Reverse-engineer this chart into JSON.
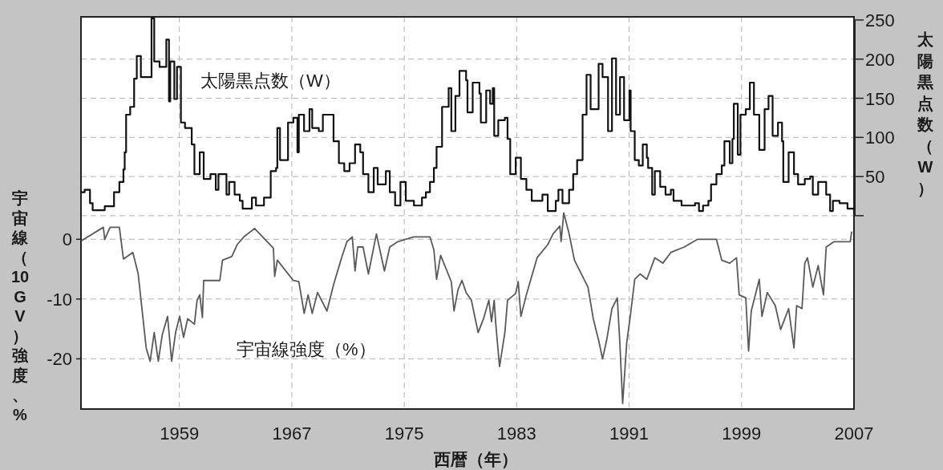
{
  "chart_data": {
    "type": "line",
    "xlabel": "西暦（年）",
    "ylabel": "宇宙線（10GV）強度、%",
    "y2label": "太陽黒点数（W）",
    "xlim": [
      1952,
      2007
    ],
    "xticks": [
      1959,
      1967,
      1975,
      1983,
      1991,
      1999,
      2007
    ],
    "ylim": [
      -28.4,
      37.2
    ],
    "yticks": [
      -20,
      -10,
      0
    ],
    "y2lim": [
      -247,
      254
    ],
    "y2ticks": [
      {
        "value": 0,
        "label": null
      },
      50,
      100,
      150,
      200,
      250
    ],
    "grid": true,
    "legend": false,
    "series": [
      {
        "name": "太陽黒点数（W）",
        "type": "step",
        "axis": "y2",
        "color": "#111111",
        "x": [
          1952.0,
          1952.26,
          1952.64,
          1952.83,
          1953.69,
          1954.35,
          1954.73,
          1955.02,
          1955.11,
          1955.21,
          1955.5,
          1955.78,
          1955.97,
          1956.26,
          1957.02,
          1957.21,
          1957.59,
          1958.07,
          1958.26,
          1958.35,
          1958.64,
          1958.83,
          1959.11,
          1959.4,
          1959.88,
          1960.07,
          1960.45,
          1960.73,
          1961.21,
          1961.59,
          1961.78,
          1962.35,
          1962.54,
          1962.93,
          1963.3,
          1963.5,
          1964.16,
          1964.45,
          1965.02,
          1965.5,
          1965.88,
          1965.97,
          1966.16,
          1966.73,
          1967.11,
          1967.4,
          1967.5,
          1967.87,
          1968.26,
          1968.45,
          1968.92,
          1969.21,
          1969.59,
          1969.97,
          1970.35,
          1970.73,
          1971.11,
          1971.5,
          1971.87,
          1972.07,
          1972.45,
          1972.83,
          1973.11,
          1973.69,
          1973.97,
          1974.35,
          1974.73,
          1975.11,
          1975.69,
          1976.26,
          1976.54,
          1976.83,
          1977.11,
          1977.3,
          1977.69,
          1978.16,
          1978.35,
          1978.64,
          1978.93,
          1979.4,
          1979.5,
          1979.87,
          1980.35,
          1980.45,
          1980.83,
          1981.11,
          1981.3,
          1981.4,
          1981.69,
          1982.16,
          1982.35,
          1982.54,
          1982.93,
          1983.3,
          1983.69,
          1984.07,
          1984.83,
          1985.21,
          1985.78,
          1985.97,
          1986.26,
          1986.73,
          1987.02,
          1987.3,
          1987.69,
          1987.97,
          1988.26,
          1988.83,
          1989.11,
          1989.5,
          1989.78,
          1990.07,
          1990.35,
          1990.64,
          1991.02,
          1991.11,
          1991.4,
          1991.69,
          1991.97,
          1992.26,
          1992.35,
          1992.64,
          1992.83,
          1993.21,
          1993.59,
          1993.97,
          1994.16,
          1994.73,
          1995.3,
          1995.69,
          1995.97,
          1996.26,
          1996.64,
          1996.83,
          1997.21,
          1997.59,
          1997.78,
          1998.16,
          1998.35,
          1998.45,
          1998.73,
          1998.92,
          1999.3,
          1999.59,
          1999.88,
          2000.26,
          2000.64,
          2000.92,
          2001.21,
          2001.59,
          2001.88,
          2001.97,
          2002.35,
          2002.73,
          2003.02,
          2003.5,
          2003.88,
          2004.07,
          2004.45,
          2005.02,
          2005.3,
          2005.5,
          2005.97,
          2006.54,
          2007
        ],
        "values": [
          30,
          33,
          16,
          7,
          12,
          30,
          43,
          59,
          81,
          129,
          139,
          175,
          204,
          177,
          252,
          197,
          190,
          225,
          146,
          197,
          149,
          190,
          119,
          112,
          91,
          53,
          81,
          47,
          53,
          33,
          53,
          27,
          43,
          27,
          19,
          9,
          23,
          13,
          23,
          57,
          61,
          112,
          71,
          119,
          125,
          81,
          129,
          108,
          136,
          112,
          108,
          129,
          129,
          95,
          67,
          57,
          67,
          91,
          81,
          53,
          30,
          61,
          40,
          57,
          30,
          13,
          43,
          19,
          13,
          23,
          30,
          43,
          61,
          88,
          139,
          163,
          108,
          153,
          185,
          173,
          132,
          170,
          156,
          119,
          160,
          143,
          163,
          102,
          122,
          125,
          98,
          53,
          74,
          47,
          33,
          19,
          27,
          6,
          19,
          33,
          16,
          33,
          53,
          71,
          129,
          180,
          136,
          194,
          177,
          108,
          201,
          129,
          177,
          122,
          160,
          108,
          71,
          64,
          91,
          74,
          61,
          27,
          57,
          37,
          27,
          33,
          19,
          13,
          13,
          16,
          6,
          13,
          19,
          40,
          53,
          64,
          95,
          67,
          98,
          143,
          78,
          129,
          136,
          170,
          129,
          84,
          136,
          153,
          102,
          119,
          95,
          43,
          81,
          53,
          40,
          47,
          50,
          27,
          43,
          27,
          6,
          19,
          16,
          9,
          4
        ]
      },
      {
        "name": "宇宙線強度（%）",
        "type": "line",
        "color": "#5a5a5a",
        "x": [
          1952.07,
          1953.59,
          1953.69,
          1954.07,
          1954.73,
          1955.02,
          1955.69,
          1956.07,
          1956.64,
          1956.92,
          1957.21,
          1957.5,
          1957.78,
          1958.16,
          1958.45,
          1958.73,
          1959.02,
          1959.3,
          1959.59,
          1960.07,
          1960.26,
          1960.45,
          1960.64,
          1960.73,
          1961.88,
          1962.07,
          1962.73,
          1963.11,
          1963.59,
          1964.35,
          1965.69,
          1965.78,
          1965.97,
          1967.11,
          1967.5,
          1967.88,
          1968.16,
          1968.45,
          1968.83,
          1969.5,
          1969.97,
          1970.54,
          1970.92,
          1971.3,
          1971.5,
          1971.69,
          1972.07,
          1972.45,
          1973.02,
          1973.59,
          1973.97,
          1974.54,
          1975.69,
          1976.83,
          1977.11,
          1977.3,
          1977.59,
          1978.35,
          1978.54,
          1978.83,
          1979.11,
          1979.4,
          1979.78,
          1979.97,
          1980.26,
          1980.64,
          1981.02,
          1981.21,
          1981.4,
          1981.5,
          1981.78,
          1982.16,
          1982.35,
          1982.92,
          1983.11,
          1983.3,
          1983.69,
          1984.45,
          1985.21,
          1985.59,
          1986.07,
          1986.16,
          1986.35,
          1986.73,
          1987.11,
          1988.07,
          1988.45,
          1988.83,
          1989.11,
          1989.4,
          1989.78,
          1990.16,
          1990.35,
          1990.54,
          1990.83,
          1991.11,
          1991.4,
          1991.78,
          1992.26,
          1992.83,
          1993.4,
          1993.97,
          1994.92,
          1995.88,
          1997.21,
          1997.59,
          1998.16,
          1998.64,
          1998.83,
          1999.3,
          1999.5,
          1999.69,
          2000.26,
          2000.45,
          2000.83,
          2001.4,
          2001.78,
          2002.35,
          2002.73,
          2002.92,
          2003.3,
          2003.5,
          2003.69,
          2004.07,
          2004.45,
          2004.83,
          2005.02,
          2005.59,
          2006.73,
          2006.83
        ],
        "values": [
          -0.2,
          2,
          0,
          2,
          2,
          -3.3,
          -2.2,
          -5.8,
          -18.2,
          -20.4,
          -15.6,
          -20.4,
          -16,
          -12.9,
          -20.4,
          -15.6,
          -12.9,
          -16.4,
          -13.3,
          -14.2,
          -10.2,
          -9.3,
          -13.1,
          -6.9,
          -6.9,
          -3.5,
          -2.9,
          -0.9,
          0.4,
          1.8,
          -1.5,
          -6.2,
          -3.5,
          -6.9,
          -7.1,
          -12.4,
          -9.3,
          -12.4,
          -8.9,
          -12,
          -7.6,
          -3.1,
          -0.4,
          0.4,
          -5.3,
          -1.3,
          -1.3,
          -5.8,
          0.9,
          -5.3,
          -1.3,
          -0.4,
          0.4,
          0.4,
          -1.8,
          -6.7,
          -2.7,
          -7.1,
          -12,
          -8.4,
          -6.9,
          -8.9,
          -10.2,
          -12.4,
          -15.6,
          -13.3,
          -10.2,
          -13.8,
          -10.2,
          -13.8,
          -21.3,
          -15.6,
          -10.2,
          -9.1,
          -7.1,
          -12.9,
          -9.3,
          -3.1,
          -0.9,
          0.9,
          2.2,
          -0.4,
          4.4,
          0.9,
          -3.5,
          -8,
          -13.3,
          -16.9,
          -20,
          -16.9,
          -11.6,
          -9.8,
          -17.8,
          -27.5,
          -17.3,
          -12.4,
          -6.7,
          -5.8,
          -6.7,
          -3.1,
          -4,
          -2.2,
          -1.3,
          0,
          0,
          -3.5,
          -4,
          -3.1,
          -9.3,
          -9.8,
          -18.7,
          -12,
          -6.7,
          -12.9,
          -8.9,
          -11.1,
          -15.1,
          -11.6,
          -18.2,
          -11.1,
          -11.6,
          -4,
          -3.1,
          -8,
          -4.4,
          -9.3,
          -1.3,
          -0.4,
          -0.4,
          1.2
        ]
      }
    ]
  }
}
